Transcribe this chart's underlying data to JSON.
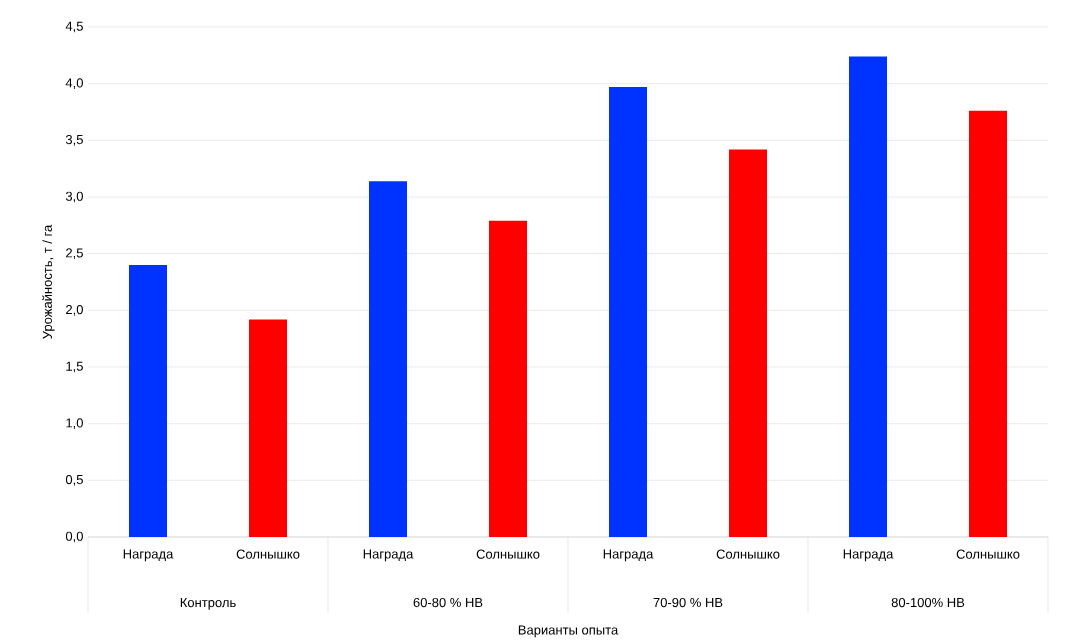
{
  "chart_data": {
    "type": "bar",
    "xlabel": "Варианты опыта",
    "ylabel": "Урожайность, т / га",
    "categories": [
      "Награда",
      "Солнышко",
      "Награда",
      "Солнышко",
      "Награда",
      "Солнышко",
      "Награда",
      "Солнышко"
    ],
    "values": [
      2.4,
      1.92,
      3.14,
      2.79,
      3.97,
      3.42,
      4.24,
      3.76
    ],
    "colors": [
      "#0033ff",
      "#ff0000",
      "#0033ff",
      "#ff0000",
      "#0033ff",
      "#ff0000",
      "#0033ff",
      "#ff0000"
    ],
    "ylim": [
      0,
      4.5
    ],
    "yticks": [
      {
        "value": 0,
        "label": "0,0"
      },
      {
        "value": 0.5,
        "label": "0,5"
      },
      {
        "value": 1,
        "label": "1,0"
      },
      {
        "value": 1.5,
        "label": "1,5"
      },
      {
        "value": 2,
        "label": "2,0"
      },
      {
        "value": 2.5,
        "label": "2,5"
      },
      {
        "value": 3,
        "label": "3,0"
      },
      {
        "value": 3.5,
        "label": "3,5"
      },
      {
        "value": 4,
        "label": "4,0"
      },
      {
        "value": 4.5,
        "label": "4,5"
      }
    ],
    "grid": true,
    "annotations": [
      "Контроль",
      "60-80 % НВ",
      "70-90 % НВ",
      "80-100% НВ"
    ]
  }
}
